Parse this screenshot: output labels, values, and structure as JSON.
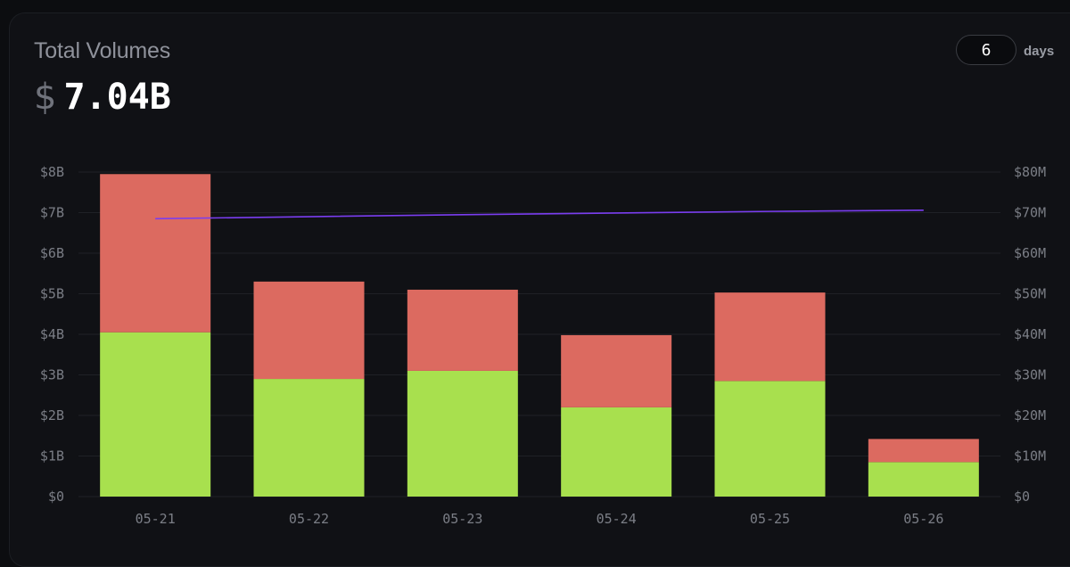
{
  "header": {
    "title": "Total Volumes",
    "currency_symbol": "$",
    "total_value": "7.04B"
  },
  "controls": {
    "days_value": "6",
    "days_label": "days"
  },
  "colors": {
    "sell": "#dc6a60",
    "buy": "#a8e04e",
    "line": "#7a3df0",
    "grid": "#1f2126",
    "tick": "#7b7e86"
  },
  "chart_data": {
    "type": "bar",
    "stacked": true,
    "categories": [
      "05-21",
      "05-22",
      "05-23",
      "05-24",
      "05-25",
      "05-26"
    ],
    "series": [
      {
        "values": [
          4.05,
          2.9,
          3.1,
          2.2,
          2.85,
          0.85
        ]
      },
      {
        "values": [
          3.9,
          2.4,
          2.0,
          1.78,
          2.18,
          0.57
        ]
      }
    ],
    "line_series": {
      "axis": "right",
      "values": [
        68.5,
        69.0,
        69.5,
        69.9,
        70.3,
        70.6
      ]
    },
    "ylim": [
      0,
      8
    ],
    "y2lim": [
      0,
      80
    ],
    "yticks": [
      "$0",
      "$1B",
      "$2B",
      "$3B",
      "$4B",
      "$5B",
      "$6B",
      "$7B",
      "$8B"
    ],
    "y2ticks": [
      "$0",
      "$10M",
      "$20M",
      "$30M",
      "$40M",
      "$50M",
      "$60M",
      "$70M",
      "$80M"
    ],
    "grid": true
  }
}
